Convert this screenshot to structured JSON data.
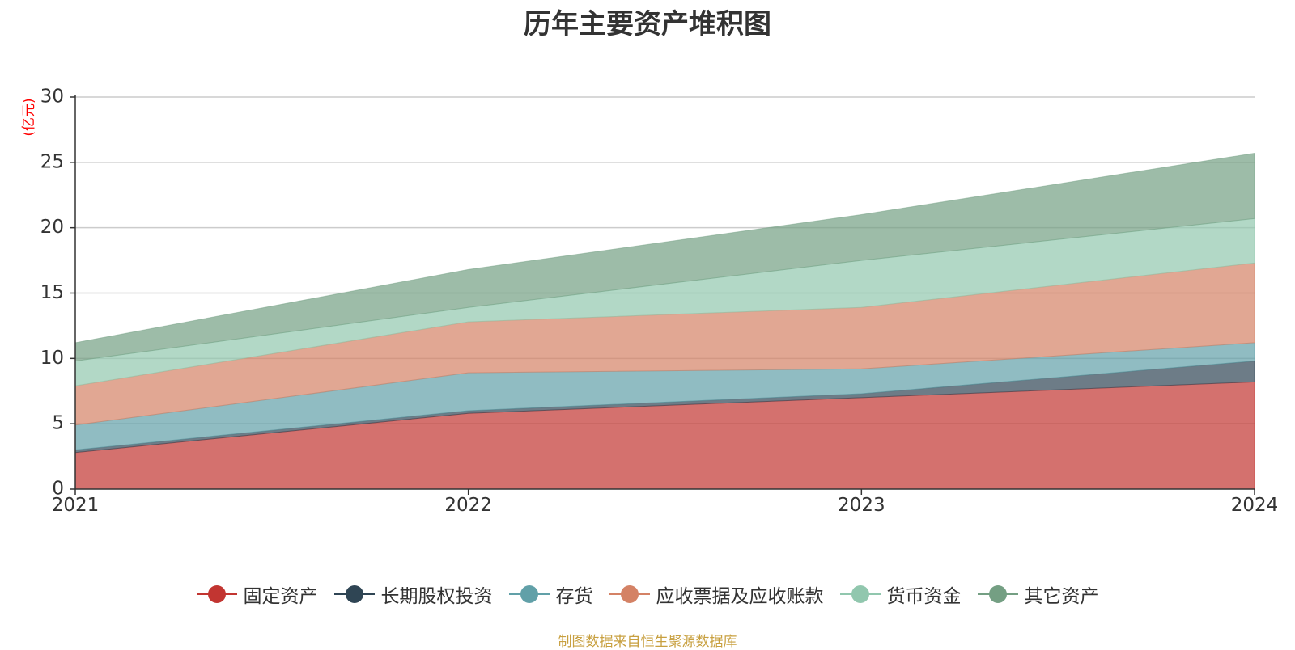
{
  "chart_data": {
    "type": "area",
    "stacked": true,
    "title": "历年主要资产堆积图",
    "ylabel": "(亿元)",
    "xlabel": "",
    "categories": [
      "2021",
      "2022",
      "2023",
      "2024"
    ],
    "ylim": [
      0,
      30
    ],
    "yticks": [
      0,
      5,
      10,
      15,
      20,
      25,
      30
    ],
    "grid": true,
    "legend_position": "bottom",
    "series": [
      {
        "name": "固定资产",
        "color": "#c23531",
        "values": [
          2.8,
          5.8,
          7.0,
          8.2
        ]
      },
      {
        "name": "长期股权投资",
        "color": "#2f4554",
        "values": [
          0.2,
          0.2,
          0.3,
          1.6
        ]
      },
      {
        "name": "存货",
        "color": "#61a0a8",
        "values": [
          1.9,
          2.9,
          1.9,
          1.4
        ]
      },
      {
        "name": "应收票据及应收账款",
        "color": "#d48265",
        "values": [
          3.0,
          3.9,
          4.7,
          6.1
        ]
      },
      {
        "name": "货币资金",
        "color": "#91c7ae",
        "values": [
          1.9,
          1.1,
          3.6,
          3.4
        ]
      },
      {
        "name": "其它资产",
        "color": "#749f83",
        "values": [
          1.4,
          2.9,
          3.5,
          5.0
        ]
      }
    ]
  },
  "footer": {
    "source": "制图数据来自恒生聚源数据库"
  },
  "colors": {
    "ylabel": "#ff0000",
    "footer": "#c8a040",
    "axis": "#333333",
    "grid": "#cccccc"
  }
}
